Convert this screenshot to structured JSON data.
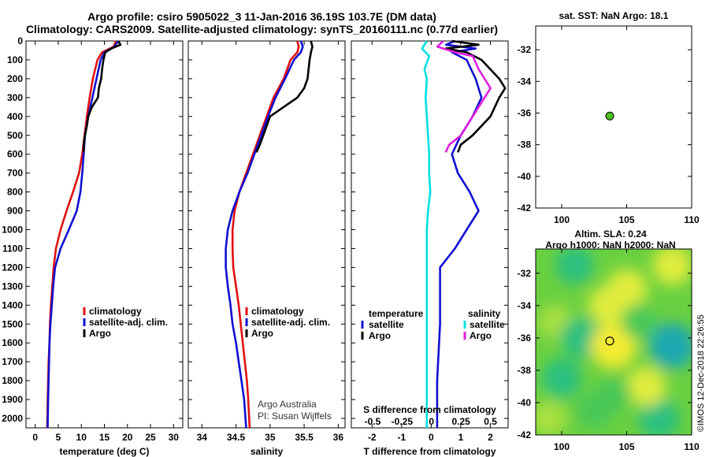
{
  "title_line1": "Argo profile: csiro 5905022_3 11-Jan-2016 36.19S 103.7E (DM data)",
  "title_line2": "Climatology: CARS2009. Satellite-adjusted climatology: synTS_20160111.nc (0.77d earlier)",
  "credit_line1": "Argo Australia",
  "credit_line2": "PI: Susan Wijffels",
  "watermark": "©IMOS 12-Dec-2018 22:26:55",
  "colors": {
    "climatology": "#e01010",
    "satellite": "#1010d0",
    "argo": "#000000",
    "sat_s": "#00e0e0",
    "argo_s": "#e020e0"
  },
  "chart_data": [
    {
      "type": "line",
      "name": "temperature",
      "xlabel": "temperature (deg C)",
      "xlim": [
        -2,
        32
      ],
      "xticks": [
        0,
        5,
        10,
        15,
        20,
        25,
        30
      ],
      "ylim": [
        0,
        2050
      ],
      "yticks": [
        0,
        100,
        200,
        300,
        400,
        500,
        600,
        700,
        800,
        900,
        1000,
        1100,
        1200,
        1300,
        1400,
        1500,
        1600,
        1700,
        1800,
        1900,
        2000
      ],
      "series": [
        {
          "name": "climatology",
          "color_key": "climatology",
          "points": [
            [
              17.5,
              0
            ],
            [
              17,
              30
            ],
            [
              14.5,
              60
            ],
            [
              13.5,
              100
            ],
            [
              12.5,
              200
            ],
            [
              11.8,
              300
            ],
            [
              11.2,
              400
            ],
            [
              10.7,
              500
            ],
            [
              10.2,
              600
            ],
            [
              9.5,
              700
            ],
            [
              8.2,
              800
            ],
            [
              6.8,
              900
            ],
            [
              5.5,
              1000
            ],
            [
              4.5,
              1100
            ],
            [
              4,
              1200
            ],
            [
              3.7,
              1300
            ],
            [
              3.4,
              1400
            ],
            [
              3.2,
              1500
            ],
            [
              3.1,
              1600
            ],
            [
              2.9,
              1700
            ],
            [
              2.8,
              1800
            ],
            [
              2.7,
              1900
            ],
            [
              2.6,
              2050
            ]
          ]
        },
        {
          "name": "satellite-adj. clim.",
          "color_key": "satellite",
          "points": [
            [
              18,
              0
            ],
            [
              17.2,
              30
            ],
            [
              15,
              60
            ],
            [
              14.2,
              100
            ],
            [
              13.3,
              200
            ],
            [
              12.4,
              300
            ],
            [
              11.5,
              400
            ],
            [
              10.8,
              500
            ],
            [
              10.5,
              600
            ],
            [
              10.2,
              700
            ],
            [
              9.8,
              800
            ],
            [
              9,
              900
            ],
            [
              7.3,
              1000
            ],
            [
              5.5,
              1100
            ],
            [
              4.3,
              1200
            ],
            [
              3.9,
              1300
            ],
            [
              3.6,
              1400
            ],
            [
              3.3,
              1500
            ],
            [
              3.1,
              1600
            ],
            [
              3,
              1700
            ],
            [
              2.9,
              1800
            ],
            [
              2.8,
              1900
            ],
            [
              2.7,
              2050
            ]
          ]
        },
        {
          "name": "Argo",
          "color_key": "argo",
          "points": [
            [
              18,
              0
            ],
            [
              18.5,
              20
            ],
            [
              16.5,
              40
            ],
            [
              15.2,
              60
            ],
            [
              14.8,
              100
            ],
            [
              14.5,
              150
            ],
            [
              14.3,
              200
            ],
            [
              13.8,
              250
            ],
            [
              13.6,
              300
            ],
            [
              12.3,
              350
            ],
            [
              11.5,
              400
            ],
            [
              11.2,
              450
            ],
            [
              10.8,
              500
            ],
            [
              10.5,
              550
            ],
            [
              10.5,
              590
            ]
          ]
        }
      ],
      "legend": [
        "climatology",
        "satellite-adj. clim.",
        "Argo"
      ]
    },
    {
      "type": "line",
      "name": "salinity",
      "xlabel": "salinity",
      "xlim": [
        33.8,
        36.1
      ],
      "xticks": [
        34,
        34.5,
        35,
        35.5,
        36
      ],
      "series": [
        {
          "name": "climatology",
          "color_key": "climatology",
          "points": [
            [
              35.4,
              0
            ],
            [
              35.42,
              30
            ],
            [
              35.4,
              60
            ],
            [
              35.3,
              100
            ],
            [
              35.2,
              200
            ],
            [
              35.05,
              300
            ],
            [
              34.95,
              400
            ],
            [
              34.85,
              500
            ],
            [
              34.75,
              600
            ],
            [
              34.65,
              700
            ],
            [
              34.55,
              800
            ],
            [
              34.48,
              900
            ],
            [
              34.45,
              1000
            ],
            [
              34.45,
              1100
            ],
            [
              34.46,
              1200
            ],
            [
              34.5,
              1300
            ],
            [
              34.54,
              1400
            ],
            [
              34.57,
              1500
            ],
            [
              34.6,
              1600
            ],
            [
              34.63,
              1700
            ],
            [
              34.66,
              1800
            ],
            [
              34.68,
              1900
            ],
            [
              34.7,
              2050
            ]
          ]
        },
        {
          "name": "satellite-adj. clim.",
          "color_key": "satellite",
          "points": [
            [
              35.45,
              0
            ],
            [
              35.48,
              30
            ],
            [
              35.45,
              60
            ],
            [
              35.35,
              100
            ],
            [
              35.22,
              200
            ],
            [
              35.08,
              300
            ],
            [
              34.97,
              400
            ],
            [
              34.87,
              500
            ],
            [
              34.77,
              600
            ],
            [
              34.67,
              700
            ],
            [
              34.55,
              800
            ],
            [
              34.45,
              900
            ],
            [
              34.38,
              1000
            ],
            [
              34.35,
              1100
            ],
            [
              34.35,
              1200
            ],
            [
              34.38,
              1300
            ],
            [
              34.42,
              1400
            ],
            [
              34.45,
              1500
            ],
            [
              34.5,
              1600
            ],
            [
              34.54,
              1700
            ],
            [
              34.58,
              1800
            ],
            [
              34.62,
              1900
            ],
            [
              34.65,
              2050
            ]
          ]
        },
        {
          "name": "Argo",
          "color_key": "argo",
          "points": [
            [
              35.6,
              0
            ],
            [
              35.62,
              30
            ],
            [
              35.6,
              60
            ],
            [
              35.58,
              100
            ],
            [
              35.55,
              200
            ],
            [
              35.5,
              250
            ],
            [
              35.4,
              300
            ],
            [
              35.2,
              350
            ],
            [
              35.0,
              400
            ],
            [
              34.95,
              450
            ],
            [
              34.9,
              500
            ],
            [
              34.85,
              550
            ],
            [
              34.8,
              590
            ]
          ]
        }
      ],
      "legend": [
        "climatology",
        "satellite-adj. clim.",
        "Argo"
      ]
    },
    {
      "type": "line",
      "name": "difference",
      "xlabel": "T difference from climatology",
      "xlim": [
        -2.7,
        2.6
      ],
      "xticks": [
        -2,
        -1,
        0,
        1,
        2
      ],
      "top_xlabel": "S difference from climatology",
      "top_xlim": [
        -0.68,
        0.65
      ],
      "top_xticks": [
        -0.5,
        -0.25,
        0,
        0.25,
        0.5
      ],
      "top_xticklabels": [
        "-0.5",
        "-0.25",
        "0",
        "0.25",
        "0.5"
      ],
      "series": [
        {
          "name": "temperature satellite",
          "axis": "T",
          "color_key": "satellite",
          "points": [
            [
              0.8,
              0
            ],
            [
              0.5,
              20
            ],
            [
              1.5,
              40
            ],
            [
              0.7,
              60
            ],
            [
              1.2,
              100
            ],
            [
              1.5,
              200
            ],
            [
              1.7,
              300
            ],
            [
              1.4,
              400
            ],
            [
              1.0,
              500
            ],
            [
              0.7,
              600
            ],
            [
              0.9,
              700
            ],
            [
              1.3,
              800
            ],
            [
              1.6,
              900
            ],
            [
              1.2,
              1000
            ],
            [
              0.8,
              1100
            ],
            [
              0.3,
              1200
            ],
            [
              0.3,
              1500
            ],
            [
              0.2,
              1800
            ],
            [
              0.2,
              2050
            ]
          ]
        },
        {
          "name": "temperature Argo",
          "axis": "T",
          "color_key": "argo",
          "points": [
            [
              0.7,
              0
            ],
            [
              1.6,
              20
            ],
            [
              0.5,
              40
            ],
            [
              1.2,
              60
            ],
            [
              1.7,
              100
            ],
            [
              2.3,
              200
            ],
            [
              2.5,
              250
            ],
            [
              2.3,
              300
            ],
            [
              2.0,
              400
            ],
            [
              1.4,
              500
            ],
            [
              1.0,
              550
            ],
            [
              0.9,
              590
            ]
          ]
        },
        {
          "name": "salinity satellite",
          "axis": "S",
          "color_key": "sat_s",
          "points": [
            [
              -0.04,
              0
            ],
            [
              -0.08,
              40
            ],
            [
              -0.02,
              80
            ],
            [
              -0.06,
              150
            ],
            [
              -0.04,
              200
            ],
            [
              -0.05,
              300
            ],
            [
              -0.04,
              400
            ],
            [
              -0.03,
              500
            ],
            [
              -0.02,
              600
            ],
            [
              -0.02,
              700
            ],
            [
              -0.01,
              800
            ],
            [
              -0.03,
              900
            ],
            [
              -0.04,
              1000
            ],
            [
              -0.04,
              1100
            ],
            [
              -0.04,
              1200
            ],
            [
              -0.04,
              1300
            ],
            [
              -0.04,
              1500
            ],
            [
              -0.04,
              1700
            ],
            [
              -0.04,
              1900
            ],
            [
              -0.04,
              2050
            ]
          ]
        },
        {
          "name": "salinity Argo",
          "axis": "S",
          "color_key": "argo_s",
          "points": [
            [
              0.1,
              0
            ],
            [
              0.05,
              30
            ],
            [
              0.2,
              60
            ],
            [
              0.35,
              80
            ],
            [
              0.4,
              150
            ],
            [
              0.45,
              200
            ],
            [
              0.5,
              250
            ],
            [
              0.45,
              300
            ],
            [
              0.35,
              400
            ],
            [
              0.25,
              500
            ],
            [
              0.15,
              550
            ],
            [
              0.12,
              590
            ]
          ]
        }
      ],
      "legend_temperature_title": "temperature",
      "legend_salinity_title": "salinity",
      "legend_temperature": [
        "satellite",
        "Argo"
      ],
      "legend_salinity": [
        "satellite",
        "Argo"
      ]
    },
    {
      "type": "scatter",
      "name": "sst-map",
      "title": "sat. SST: NaN Argo: 18.1",
      "xlim": [
        98,
        110
      ],
      "ylim": [
        -42,
        -30.5
      ],
      "xticks": [
        100,
        105,
        110
      ],
      "yticks": [
        -32,
        -34,
        -36,
        -38,
        -40,
        -42
      ],
      "points": [
        [
          103.7,
          -36.19
        ]
      ]
    },
    {
      "type": "heatmap",
      "name": "sla-map",
      "title_line1": "Altim. SLA: 0.24",
      "title_line2": "Argo h1000: NaN h2000: NaN",
      "xlim": [
        98,
        110
      ],
      "ylim": [
        -42,
        -30.5
      ],
      "xticks": [
        100,
        105,
        110
      ],
      "yticks": [
        -32,
        -34,
        -36,
        -38,
        -40,
        -42
      ],
      "marker": [
        103.7,
        -36.19
      ],
      "blobs": [
        {
          "x": 101,
          "y": -31.5,
          "v": -0.4
        },
        {
          "x": 99.5,
          "y": -35,
          "v": 0.2
        },
        {
          "x": 101.5,
          "y": -36,
          "v": -0.6
        },
        {
          "x": 100,
          "y": -38.5,
          "v": -0.5
        },
        {
          "x": 102.5,
          "y": -40.5,
          "v": -0.3
        },
        {
          "x": 104,
          "y": -36.5,
          "v": 0.9
        },
        {
          "x": 105,
          "y": -33,
          "v": 0.6
        },
        {
          "x": 103.5,
          "y": -34,
          "v": 0.4
        },
        {
          "x": 108.5,
          "y": -36.5,
          "v": -0.9
        },
        {
          "x": 107.5,
          "y": -41,
          "v": -0.6
        },
        {
          "x": 106.5,
          "y": -39,
          "v": 0.5
        },
        {
          "x": 108.5,
          "y": -31.5,
          "v": 0.5
        },
        {
          "x": 106,
          "y": -35,
          "v": -0.3
        },
        {
          "x": 99,
          "y": -41,
          "v": 0.3
        },
        {
          "x": 104,
          "y": -39.5,
          "v": -0.2
        }
      ]
    }
  ]
}
